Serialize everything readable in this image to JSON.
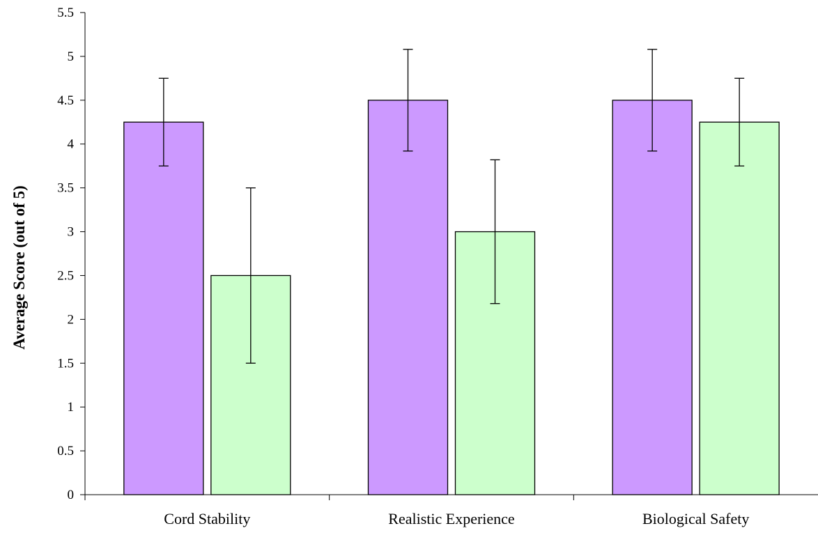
{
  "chart_data": {
    "type": "bar",
    "title": "",
    "xlabel": "",
    "ylabel": "Average Score (out of 5)",
    "categories": [
      "Cord Stability",
      "Realistic Experience",
      "Biological Safety"
    ],
    "series": [
      {
        "values": [
          4.25,
          4.5,
          4.5
        ],
        "errors": [
          0.5,
          0.58,
          0.58
        ],
        "color": "#cc99ff"
      },
      {
        "values": [
          2.5,
          3.0,
          4.25
        ],
        "errors": [
          1.0,
          0.82,
          0.5
        ],
        "color": "#ccffcc"
      }
    ],
    "ylim": [
      0,
      5.5
    ],
    "yticks": [
      0,
      0.5,
      1,
      1.5,
      2,
      2.5,
      3,
      3.5,
      4,
      4.5,
      5,
      5.5
    ],
    "grid": false,
    "legend": "none"
  }
}
